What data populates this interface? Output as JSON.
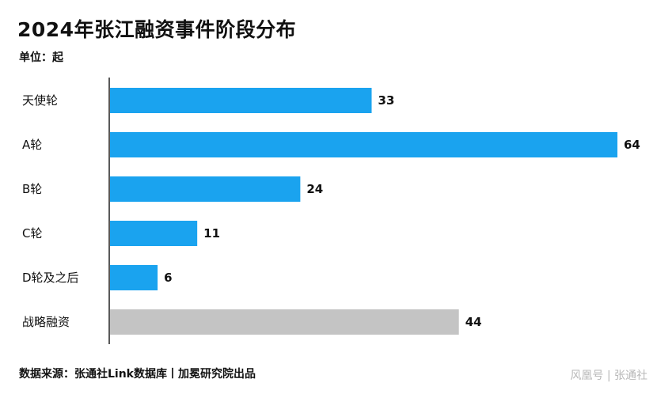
{
  "title": "2024年张江融资事件阶段分布",
  "unit_label": "单位：起",
  "source": "数据来源：张通社Link数据库丨加冕研究院出品",
  "watermark": "风凰号 | 张通社",
  "colors": {
    "primary": "#1aa3ef",
    "highlight": "#c4c4c4",
    "axis": "#222222"
  },
  "chart_data": {
    "type": "bar",
    "orientation": "horizontal",
    "categories": [
      "天使轮",
      "A轮",
      "B轮",
      "C轮",
      "D轮及之后",
      "战略融资"
    ],
    "values": [
      33,
      64,
      24,
      11,
      6,
      44
    ],
    "highlight_category": "战略融资",
    "title": "2024年张江融资事件阶段分布",
    "xlabel": "",
    "ylabel": "",
    "unit": "起",
    "xlim": [
      0,
      64
    ],
    "grid": false,
    "legend": "none"
  }
}
